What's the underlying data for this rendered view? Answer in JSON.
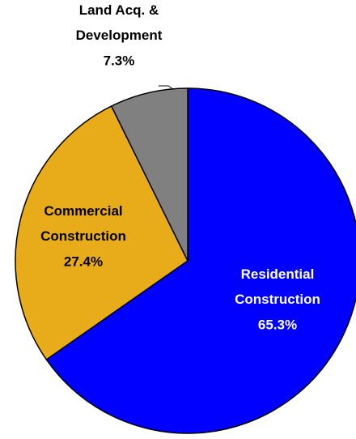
{
  "chart_data": {
    "type": "pie",
    "categories": [
      "Residential Construction",
      "Commercial Construction",
      "Land Acq. & Development"
    ],
    "values": [
      65.3,
      27.4,
      7.3
    ],
    "value_labels": [
      "65.3%",
      "27.4%",
      "7.3%"
    ],
    "colors": [
      "#0000ff",
      "#e8ac1a",
      "#808080"
    ],
    "label_colors": [
      "#ffffff",
      "#000000",
      "#000000"
    ]
  }
}
